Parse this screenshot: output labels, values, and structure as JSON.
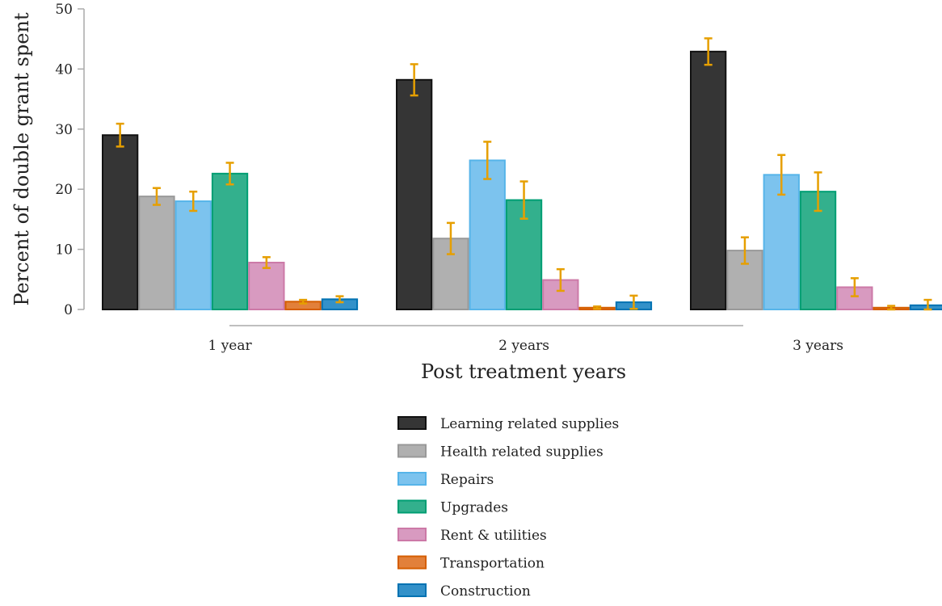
{
  "chart_data": {
    "type": "bar",
    "xlabel": "Post treatment years",
    "ylabel": "Percent of double grant spent",
    "ylim": [
      0,
      50
    ],
    "yticks": [
      0,
      10,
      20,
      30,
      40,
      50
    ],
    "categories": [
      "1 year",
      "2 years",
      "3 years"
    ],
    "legend_position": "bottom-center",
    "error_bar_color": "#e69f00",
    "series": [
      {
        "name": "Learning related supplies",
        "color": "#353535",
        "stroke": "#111111",
        "values": [
          29.0,
          38.2,
          42.9
        ],
        "errors": [
          1.9,
          2.6,
          2.2
        ]
      },
      {
        "name": "Health related supplies",
        "color": "#b0b0b0",
        "stroke": "#999999",
        "values": [
          18.8,
          11.8,
          9.8
        ],
        "errors": [
          1.4,
          2.6,
          2.2
        ]
      },
      {
        "name": "Repairs",
        "color": "#7cc3ee",
        "stroke": "#56b4e9",
        "values": [
          18.0,
          24.8,
          22.4
        ],
        "errors": [
          1.6,
          3.1,
          3.3
        ]
      },
      {
        "name": "Upgrades",
        "color": "#33b08d",
        "stroke": "#009e73",
        "values": [
          22.6,
          18.2,
          19.6
        ],
        "errors": [
          1.8,
          3.1,
          3.2
        ]
      },
      {
        "name": "Rent & utilities",
        "color": "#d89ac0",
        "stroke": "#cc79a7",
        "values": [
          7.8,
          4.9,
          3.7
        ],
        "errors": [
          0.9,
          1.8,
          1.5
        ]
      },
      {
        "name": "Transportation",
        "color": "#e2803a",
        "stroke": "#d55e00",
        "values": [
          1.3,
          0.3,
          0.3
        ],
        "errors": [
          0.3,
          0.2,
          0.3
        ]
      },
      {
        "name": "Construction",
        "color": "#3391c9",
        "stroke": "#0072b2",
        "values": [
          1.7,
          1.2,
          0.7
        ],
        "errors": [
          0.5,
          1.1,
          0.9
        ]
      }
    ]
  }
}
